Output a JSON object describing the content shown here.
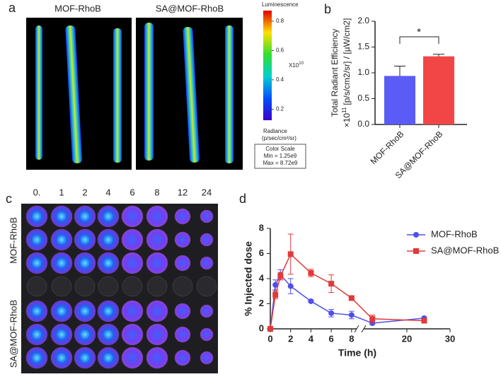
{
  "panel_labels": [
    "a",
    "b",
    "c",
    "d"
  ],
  "panel_a": {
    "labels": [
      "MOF-RhoB",
      "SA@MOF-RhoB"
    ],
    "colorbar": {
      "title": "Luminescence",
      "lim": [
        0.125,
        0.872
      ],
      "ticks": [
        0.2,
        0.4,
        0.6,
        0.8
      ],
      "multiplier": "X10",
      "multiplier_exponent": "10",
      "units_title": "Radiance",
      "units": "(p/sec/cm²/sr)",
      "scale_title": "Color  Scale",
      "min": "Min = 1.25e9",
      "max": "Max = 8.72e9"
    }
  },
  "panel_c": {
    "columns": [
      "0.",
      "1",
      "2",
      "4",
      "6",
      "8",
      "12",
      "24"
    ],
    "rows": [
      "MOF-RhoB",
      "SA@MOF-RhoB"
    ]
  },
  "chart_data": [
    {
      "type": "bar",
      "ylabel": "Total Radiant Efficiency",
      "ylabel_scale": {
        "prefix": "×10",
        "exponent": "11",
        "units": "[p/s/cm2/sr] / [µW/cm2]"
      },
      "categories": [
        "MOF-RhoB",
        "SA@MOF-RhoB"
      ],
      "values": [
        0.94,
        1.32
      ],
      "errors": [
        0.19,
        0.04
      ],
      "colors": [
        "#5b5bf5",
        "#f24646"
      ],
      "ylim": [
        0,
        2.0
      ],
      "yticks": [
        {
          "value": 0,
          "label": "0.0"
        },
        0.5,
        {
          "value": 1,
          "label": "1.0"
        },
        1.5,
        {
          "value": 2,
          "label": "2.0"
        }
      ],
      "annotation": "*"
    },
    {
      "type": "line",
      "xlabel": "Time (h)",
      "ylabel": "% Injected dose",
      "x": [
        0,
        0.5,
        1,
        2,
        4,
        6,
        8,
        12,
        24
      ],
      "series": [
        {
          "name": "MOF-RhoB",
          "color": "#5050e8",
          "marker": "circle",
          "values": [
            0,
            3.5,
            4.3,
            3.4,
            2.2,
            1.25,
            1.1,
            0.45,
            0.85
          ],
          "errors": [
            0,
            0.4,
            0.4,
            0.6,
            0.1,
            0.3,
            0.3,
            0.1,
            0.1
          ]
        },
        {
          "name": "SA@MOF-RhoB",
          "color": "#e03a3a",
          "marker": "square",
          "values": [
            0,
            2.7,
            4.2,
            5.95,
            4.45,
            3.6,
            2.45,
            0.8,
            0.65
          ],
          "errors": [
            0,
            0.3,
            0.3,
            1.6,
            0.3,
            0.7,
            0.1,
            0.3,
            0.1
          ]
        }
      ],
      "xlim": [
        0,
        30
      ],
      "xbreak": [
        8.5,
        10
      ],
      "xticks": [
        0,
        2,
        4,
        6,
        8,
        20,
        30
      ],
      "ylim": [
        0,
        8
      ],
      "yticks": [
        0,
        2,
        4,
        6,
        8
      ],
      "legend": "right"
    }
  ]
}
